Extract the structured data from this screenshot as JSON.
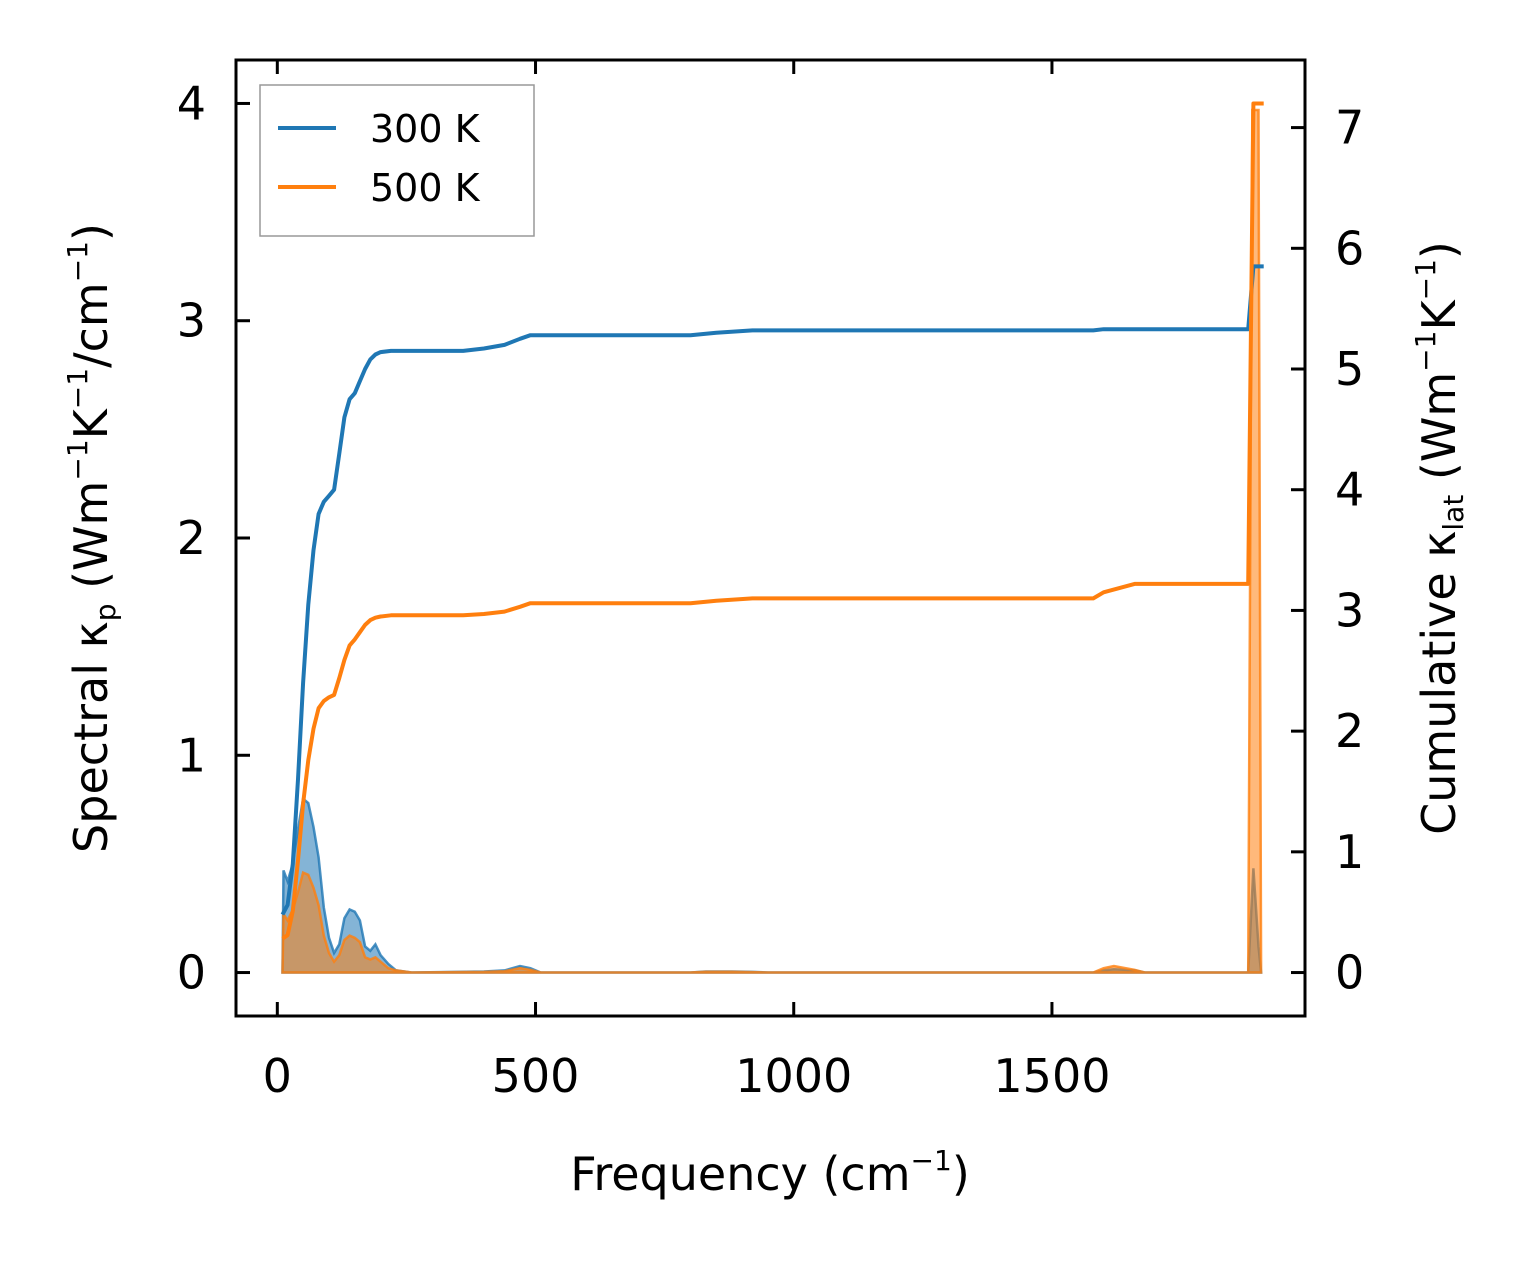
{
  "chart_data": {
    "type": "area",
    "xlabel": "Frequency (cm",
    "xlabel_sup": "−1",
    "xlabel_close": ")",
    "ylabel_left": {
      "a": "Spectral κ",
      "a_sub": "p",
      "b": " (Wm",
      "b_sup": "−1",
      "c": "K",
      "c_sup": "−1",
      "d": "/cm",
      "d_sup": "−1",
      "e": ")"
    },
    "ylabel_right": {
      "a": "Cumulative κ",
      "a_sub": "lat",
      "b": " (Wm",
      "b_sup": "−1",
      "c": "K",
      "c_sup": "−1",
      "d": ")"
    },
    "xlim": [
      -80,
      1990
    ],
    "ylim_left": [
      -0.2,
      4.2
    ],
    "ylim_right": [
      -0.36,
      7.56
    ],
    "xticks": [
      0,
      500,
      1000,
      1500
    ],
    "xtick_labels": [
      "0",
      "500",
      "1000",
      "1500"
    ],
    "yticks_left": [
      0,
      1,
      2,
      3,
      4
    ],
    "ytick_labels_left": [
      "0",
      "1",
      "2",
      "3",
      "4"
    ],
    "yticks_right": [
      0,
      1,
      2,
      3,
      4,
      5,
      6,
      7
    ],
    "ytick_labels_right": [
      "0",
      "1",
      "2",
      "3",
      "4",
      "5",
      "6",
      "7"
    ],
    "legend_position": "top-left",
    "grid": false,
    "series": [
      {
        "name": "300 K",
        "color": "#1f77b4",
        "spectral": [
          [
            10,
            0
          ],
          [
            12,
            0.47
          ],
          [
            20,
            0.42
          ],
          [
            30,
            0.5
          ],
          [
            40,
            0.66
          ],
          [
            50,
            0.8
          ],
          [
            60,
            0.78
          ],
          [
            70,
            0.67
          ],
          [
            80,
            0.53
          ],
          [
            90,
            0.3
          ],
          [
            100,
            0.16
          ],
          [
            110,
            0.09
          ],
          [
            120,
            0.13
          ],
          [
            130,
            0.25
          ],
          [
            140,
            0.29
          ],
          [
            150,
            0.28
          ],
          [
            160,
            0.24
          ],
          [
            170,
            0.12
          ],
          [
            180,
            0.1
          ],
          [
            190,
            0.13
          ],
          [
            200,
            0.08
          ],
          [
            215,
            0.04
          ],
          [
            230,
            0.01
          ],
          [
            260,
            0.0
          ],
          [
            400,
            0.005
          ],
          [
            440,
            0.01
          ],
          [
            470,
            0.03
          ],
          [
            490,
            0.02
          ],
          [
            510,
            0.0
          ],
          [
            800,
            0.0
          ],
          [
            830,
            0.005
          ],
          [
            880,
            0.005
          ],
          [
            920,
            0.003
          ],
          [
            950,
            0.0
          ],
          [
            1580,
            0.0
          ],
          [
            1600,
            0.01
          ],
          [
            1620,
            0.015
          ],
          [
            1660,
            0.01
          ],
          [
            1680,
            0.0
          ],
          [
            1880,
            0.0
          ],
          [
            1890,
            0.48
          ],
          [
            1900,
            0.12
          ],
          [
            1905,
            0.0
          ]
        ],
        "cumulative": [
          [
            10,
            0.48
          ],
          [
            20,
            0.56
          ],
          [
            30,
            0.9
          ],
          [
            40,
            1.6
          ],
          [
            50,
            2.4
          ],
          [
            60,
            3.05
          ],
          [
            70,
            3.5
          ],
          [
            80,
            3.8
          ],
          [
            90,
            3.9
          ],
          [
            100,
            3.95
          ],
          [
            110,
            4.0
          ],
          [
            120,
            4.3
          ],
          [
            130,
            4.6
          ],
          [
            140,
            4.75
          ],
          [
            150,
            4.8
          ],
          [
            160,
            4.9
          ],
          [
            170,
            5.0
          ],
          [
            180,
            5.08
          ],
          [
            190,
            5.12
          ],
          [
            200,
            5.14
          ],
          [
            220,
            5.15
          ],
          [
            250,
            5.15
          ],
          [
            360,
            5.15
          ],
          [
            400,
            5.17
          ],
          [
            440,
            5.2
          ],
          [
            470,
            5.25
          ],
          [
            490,
            5.28
          ],
          [
            510,
            5.28
          ],
          [
            800,
            5.28
          ],
          [
            850,
            5.3
          ],
          [
            920,
            5.32
          ],
          [
            1580,
            5.32
          ],
          [
            1600,
            5.33
          ],
          [
            1660,
            5.33
          ],
          [
            1880,
            5.33
          ],
          [
            1890,
            5.85
          ],
          [
            1910,
            5.85
          ]
        ]
      },
      {
        "name": "500 K",
        "color": "#ff7f0e",
        "spectral": [
          [
            10,
            0
          ],
          [
            12,
            0.27
          ],
          [
            20,
            0.24
          ],
          [
            30,
            0.29
          ],
          [
            40,
            0.37
          ],
          [
            50,
            0.46
          ],
          [
            60,
            0.45
          ],
          [
            70,
            0.39
          ],
          [
            80,
            0.31
          ],
          [
            90,
            0.17
          ],
          [
            100,
            0.09
          ],
          [
            110,
            0.05
          ],
          [
            120,
            0.08
          ],
          [
            130,
            0.15
          ],
          [
            140,
            0.17
          ],
          [
            150,
            0.16
          ],
          [
            160,
            0.14
          ],
          [
            170,
            0.07
          ],
          [
            180,
            0.06
          ],
          [
            190,
            0.07
          ],
          [
            200,
            0.05
          ],
          [
            215,
            0.02
          ],
          [
            230,
            0.01
          ],
          [
            260,
            0.0
          ],
          [
            400,
            0.003
          ],
          [
            440,
            0.006
          ],
          [
            470,
            0.02
          ],
          [
            490,
            0.012
          ],
          [
            510,
            0.0
          ],
          [
            800,
            0.0
          ],
          [
            830,
            0.004
          ],
          [
            880,
            0.004
          ],
          [
            920,
            0.002
          ],
          [
            950,
            0.0
          ],
          [
            1580,
            0.0
          ],
          [
            1600,
            0.02
          ],
          [
            1620,
            0.03
          ],
          [
            1660,
            0.012
          ],
          [
            1680,
            0.0
          ],
          [
            1880,
            0.0
          ],
          [
            1888,
            3.97
          ],
          [
            1900,
            3.97
          ],
          [
            1905,
            0.0
          ]
        ],
        "cumulative": [
          [
            10,
            0.28
          ],
          [
            20,
            0.31
          ],
          [
            30,
            0.51
          ],
          [
            40,
            0.93
          ],
          [
            50,
            1.4
          ],
          [
            60,
            1.76
          ],
          [
            70,
            2.02
          ],
          [
            80,
            2.19
          ],
          [
            90,
            2.25
          ],
          [
            100,
            2.28
          ],
          [
            110,
            2.3
          ],
          [
            120,
            2.44
          ],
          [
            130,
            2.59
          ],
          [
            140,
            2.71
          ],
          [
            150,
            2.76
          ],
          [
            160,
            2.82
          ],
          [
            170,
            2.88
          ],
          [
            180,
            2.92
          ],
          [
            190,
            2.94
          ],
          [
            200,
            2.95
          ],
          [
            220,
            2.96
          ],
          [
            250,
            2.96
          ],
          [
            360,
            2.96
          ],
          [
            400,
            2.97
          ],
          [
            440,
            2.99
          ],
          [
            470,
            3.03
          ],
          [
            490,
            3.06
          ],
          [
            510,
            3.06
          ],
          [
            800,
            3.06
          ],
          [
            850,
            3.08
          ],
          [
            920,
            3.1
          ],
          [
            1580,
            3.1
          ],
          [
            1600,
            3.15
          ],
          [
            1660,
            3.22
          ],
          [
            1880,
            3.22
          ],
          [
            1890,
            7.2
          ],
          [
            1910,
            7.2
          ]
        ]
      }
    ]
  }
}
